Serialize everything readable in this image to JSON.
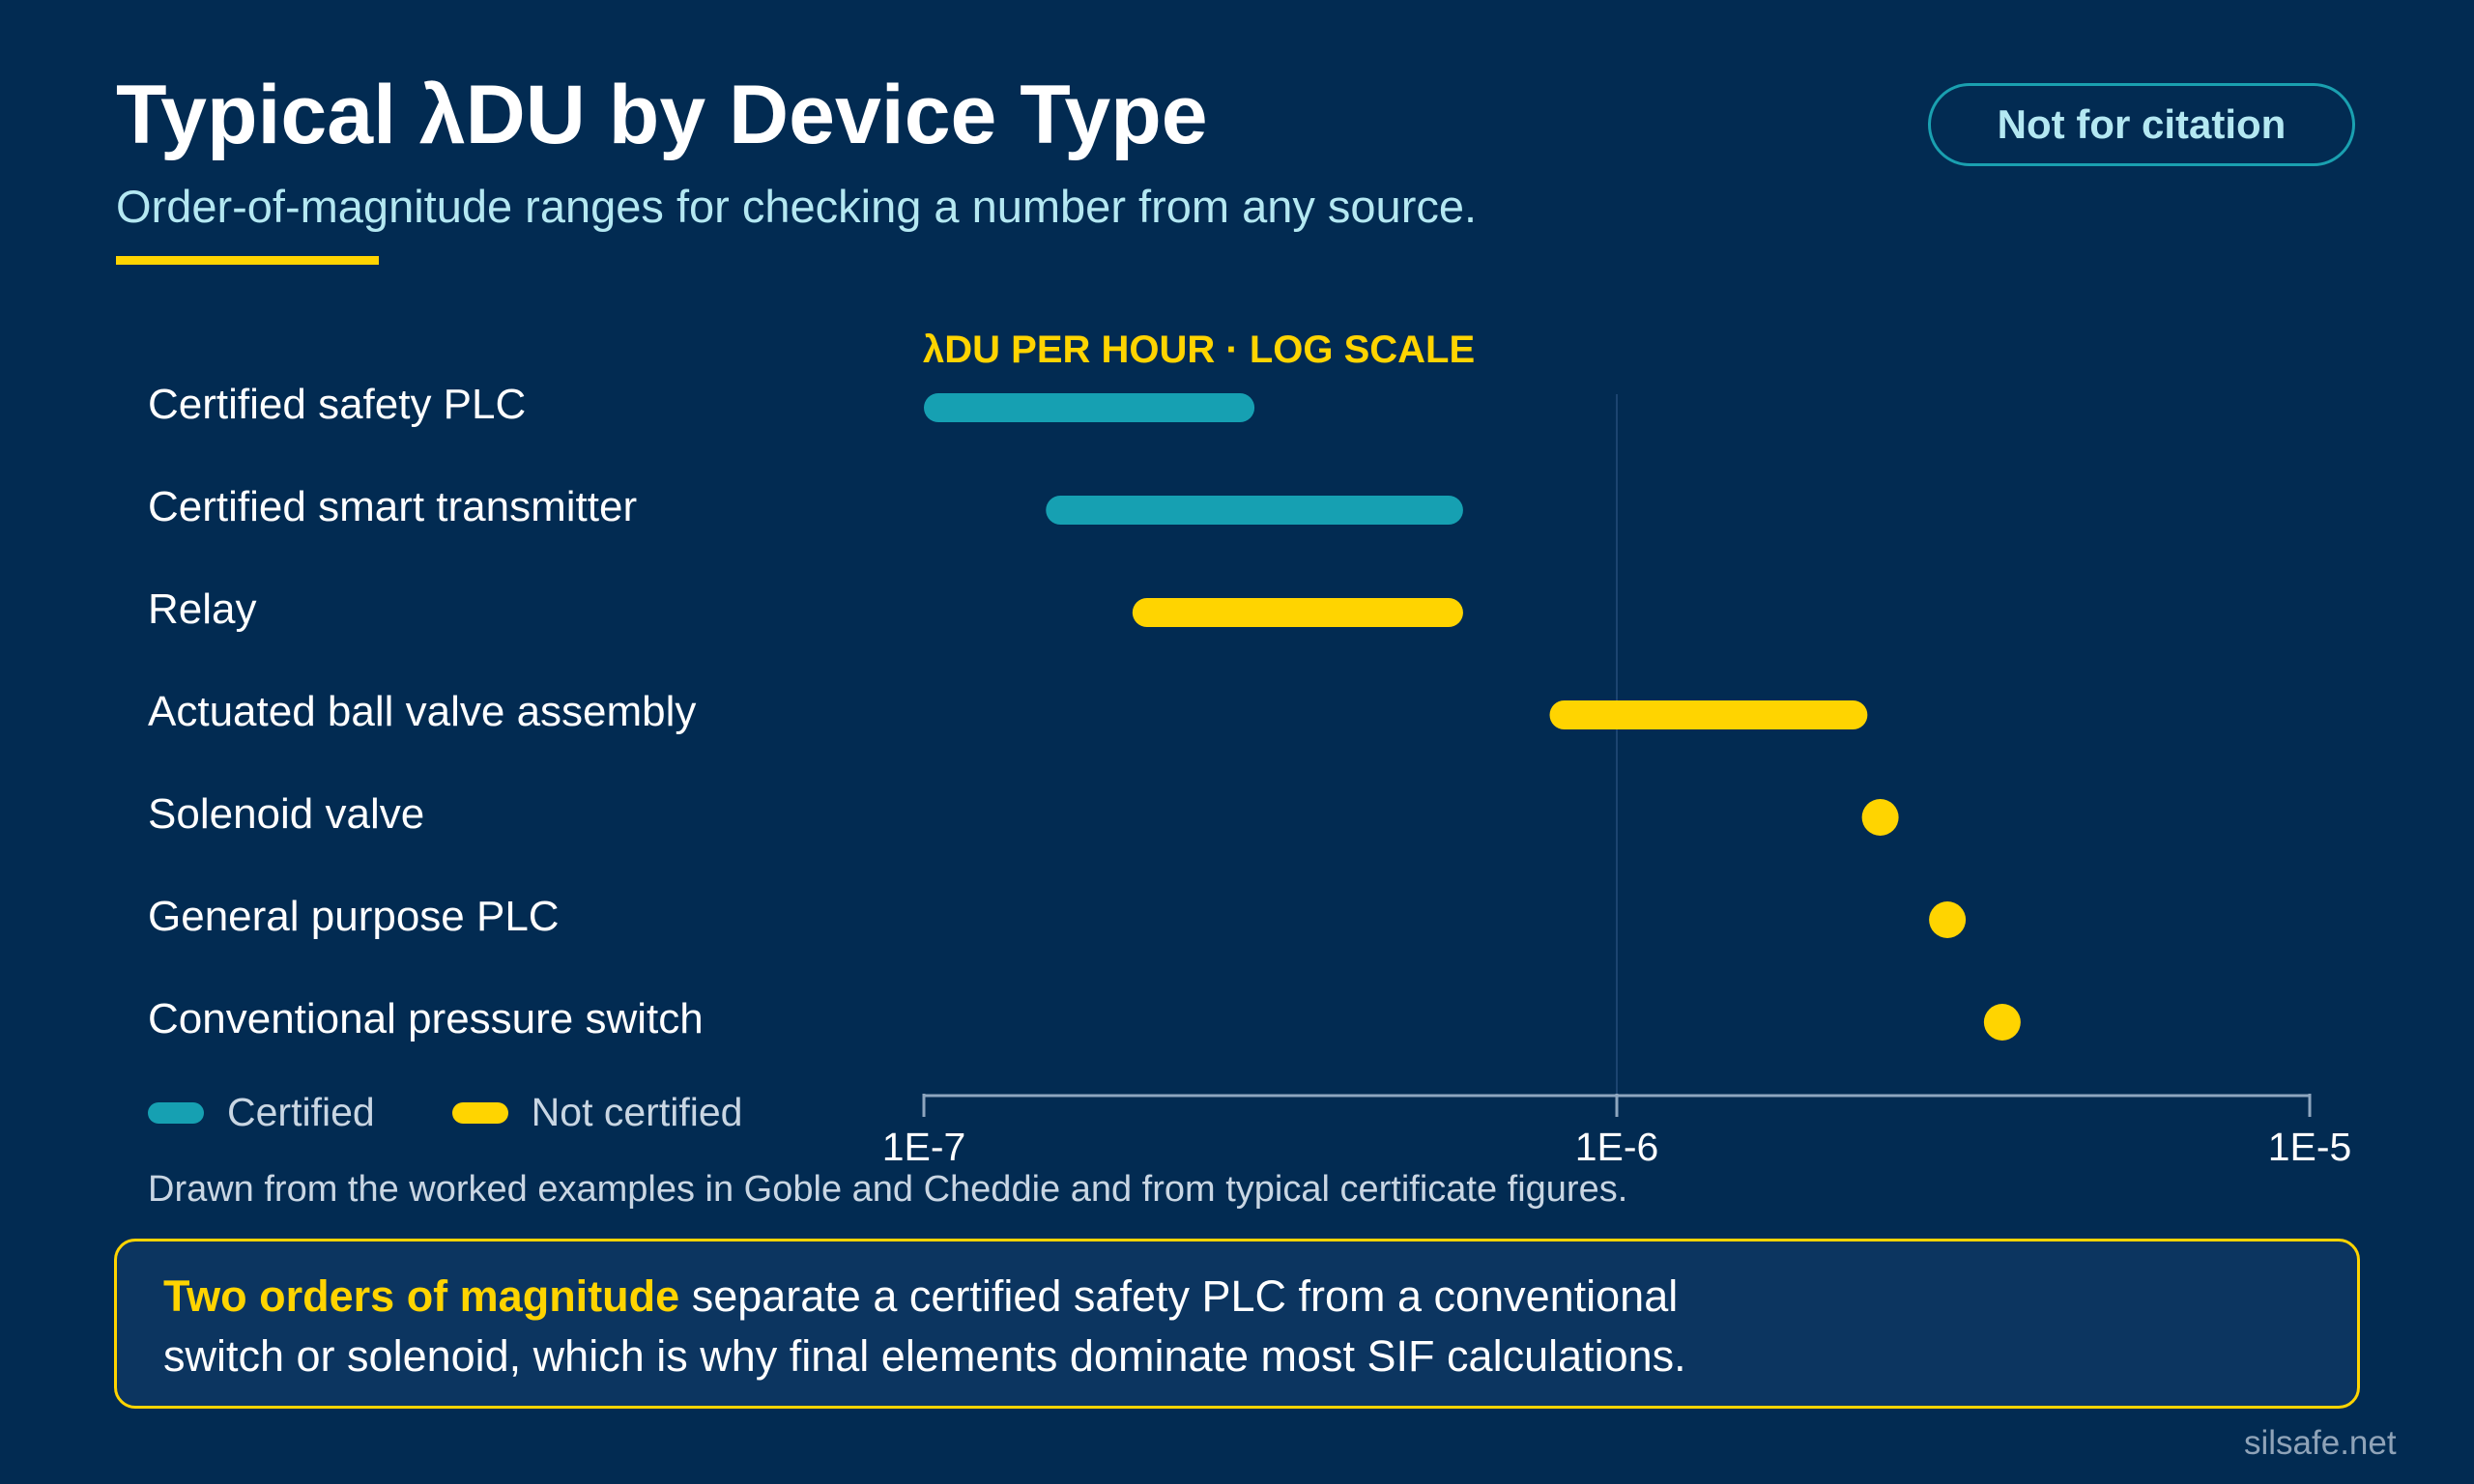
{
  "header": {
    "title": "Typical λDU by Device Type",
    "subtitle": "Order-of-magnitude ranges for checking a number from any source.",
    "badge": "Not for citation"
  },
  "chart_data": {
    "type": "range",
    "axis_title": "λDU PER HOUR · LOG SCALE",
    "x_scale": "log",
    "xlim": [
      1e-07,
      1e-05
    ],
    "ticks": [
      {
        "value": 1e-07,
        "label": "1E-7"
      },
      {
        "value": 1e-06,
        "label": "1E-6"
      },
      {
        "value": 1e-05,
        "label": "1E-5"
      }
    ],
    "legend": [
      {
        "key": "certified",
        "label": "Certified",
        "color": "#16a0b2"
      },
      {
        "key": "not_certified",
        "label": "Not certified",
        "color": "#ffd400"
      }
    ],
    "rows": [
      {
        "label": "Certified safety PLC",
        "category": "certified",
        "low": 1e-07,
        "high": 3e-07
      },
      {
        "label": "Certified smart transmitter",
        "category": "certified",
        "low": 1.5e-07,
        "high": 6e-07
      },
      {
        "label": "Relay",
        "category": "not_certified",
        "low": 2e-07,
        "high": 6e-07
      },
      {
        "label": "Actuated ball valve assembly",
        "category": "not_certified",
        "low": 8e-07,
        "high": 2.3e-06
      },
      {
        "label": "Solenoid valve",
        "category": "not_certified",
        "low": 2.4e-06,
        "high": 2.4e-06
      },
      {
        "label": "General purpose PLC",
        "category": "not_certified",
        "low": 3e-06,
        "high": 3e-06
      },
      {
        "label": "Conventional pressure switch",
        "category": "not_certified",
        "low": 3.6e-06,
        "high": 3.6e-06
      }
    ]
  },
  "source_note": "Drawn from the worked examples in Goble and Cheddie and from typical certificate figures.",
  "callout": {
    "lead": "Two orders of magnitude",
    "line1_rest": " separate a certified safety PLC from a conventional",
    "line2": "switch or solenoid, which is why final elements dominate most SIF calculations."
  },
  "footer": "silsafe.net"
}
